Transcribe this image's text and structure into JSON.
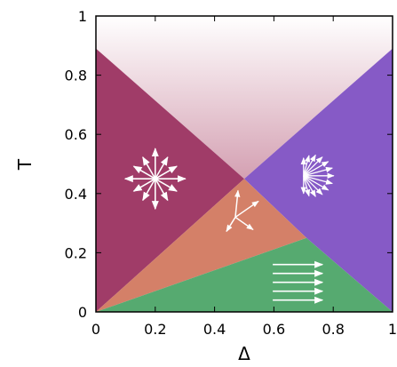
{
  "chart_data": {
    "type": "region-diagram",
    "title": "",
    "xlabel": "Δ",
    "ylabel": "T",
    "xlim": [
      0,
      1
    ],
    "ylim": [
      0,
      1
    ],
    "x_ticks": [
      "0",
      "0.2",
      "0.4",
      "0.6",
      "0.8",
      "1"
    ],
    "y_ticks": [
      "0",
      "0.2",
      "0.4",
      "0.6",
      "0.8",
      "1"
    ],
    "grid": false,
    "legend": "none",
    "regions": [
      {
        "id": "top",
        "color_top": "#ffffff",
        "color_bottom": "#d4a0b2",
        "vertices": [
          [
            0,
            1
          ],
          [
            1,
            1
          ],
          [
            1,
            0.89
          ],
          [
            0.5,
            0.45
          ],
          [
            0,
            0.89
          ]
        ]
      },
      {
        "id": "left",
        "color": "#a03c68",
        "vertices": [
          [
            0,
            0
          ],
          [
            0,
            0.89
          ],
          [
            0.5,
            0.45
          ]
        ],
        "icon": "isotropic-arrows-icon"
      },
      {
        "id": "right",
        "color": "#865ac6",
        "vertices": [
          [
            1,
            0
          ],
          [
            1,
            0.89
          ],
          [
            0.5,
            0.45
          ],
          [
            0.71,
            0.25
          ]
        ],
        "icon": "fan-arrows-icon"
      },
      {
        "id": "center",
        "color": "#d48068",
        "vertices": [
          [
            0,
            0
          ],
          [
            0.5,
            0.45
          ],
          [
            0.71,
            0.25
          ]
        ],
        "icon": "axes-arrows-icon"
      },
      {
        "id": "bottom",
        "color": "#56aa70",
        "vertices": [
          [
            0,
            0
          ],
          [
            0.71,
            0.25
          ],
          [
            1,
            0
          ]
        ],
        "icon": "parallel-arrows-icon"
      }
    ]
  }
}
